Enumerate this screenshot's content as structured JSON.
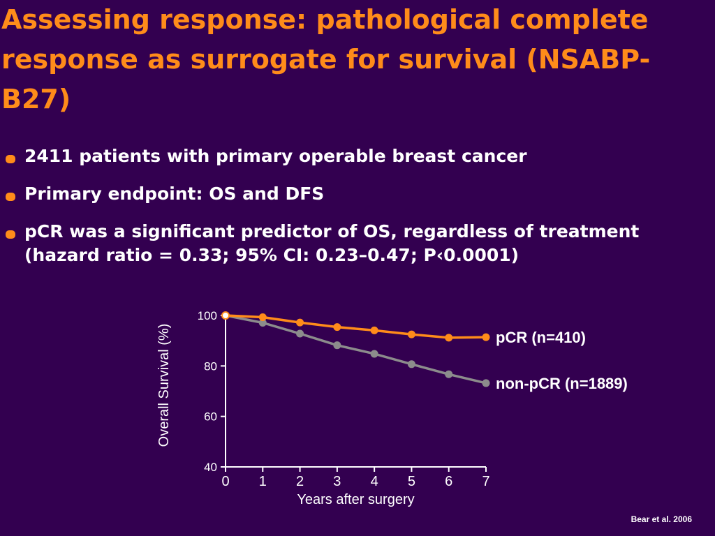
{
  "slide": {
    "title": "Assessing response: pathological complete response as surrogate for survival (NSABP-B27)",
    "bullets": [
      "2411 patients with primary operable breast cancer",
      "Primary endpoint: OS and DFS",
      "pCR was a significant predictor of OS, regardless of treatment (hazard ratio = 0.33; 95% CI: 0.23–0.47; P‹0.0001)"
    ],
    "citation": "Bear et al. 2006"
  },
  "colors": {
    "background": "#330050",
    "accent": "#ff8c1a",
    "text": "#ffffff",
    "series_pcr": "#ff8c1a",
    "series_nonpcr": "#8c8c8c"
  },
  "chart_data": {
    "type": "line",
    "title": "",
    "xlabel": "Years after surgery",
    "ylabel": "Overall Survival (%)",
    "xlim": [
      0,
      7
    ],
    "ylim": [
      40,
      100
    ],
    "x_ticks": [
      0,
      1,
      2,
      3,
      4,
      5,
      6,
      7
    ],
    "y_ticks": [
      40,
      60,
      80,
      100
    ],
    "grid": false,
    "legend_placement": "right-inline",
    "x": [
      0,
      1,
      2,
      3,
      4,
      5,
      6,
      7
    ],
    "series": [
      {
        "name": "pCR (n=410)",
        "values": [
          100,
          99.3,
          97.2,
          95.4,
          94.1,
          92.5,
          91.2,
          91.4
        ]
      },
      {
        "name": "non-pCR (n=1889)",
        "values": [
          100,
          97.1,
          92.8,
          88.2,
          84.8,
          80.7,
          76.7,
          73.2
        ]
      }
    ]
  }
}
